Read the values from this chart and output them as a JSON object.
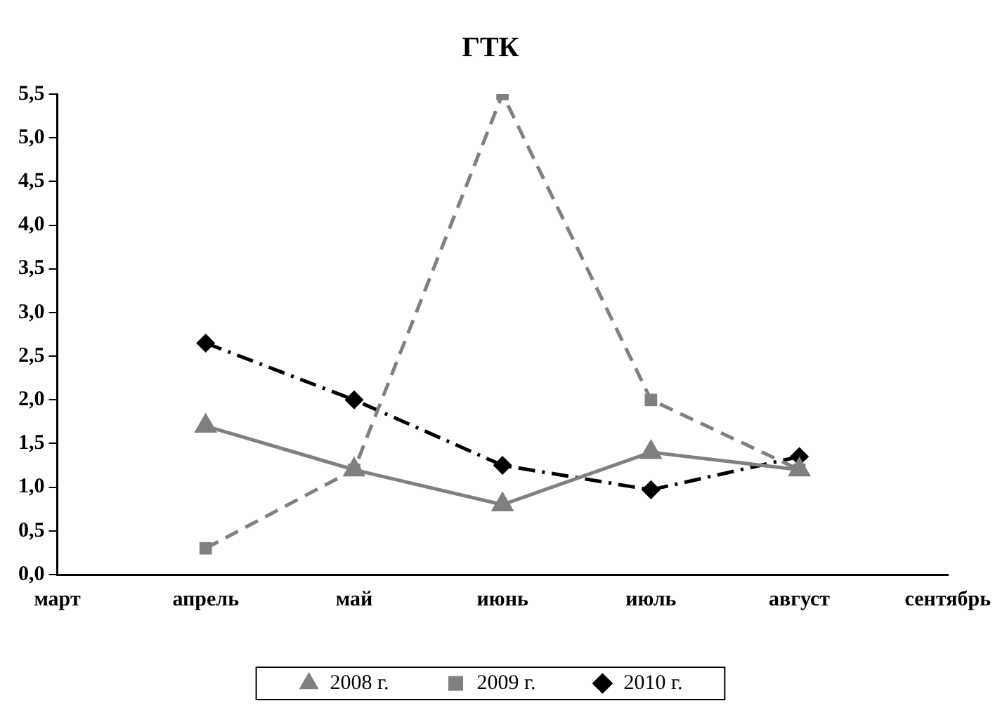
{
  "chart_data": {
    "type": "line",
    "title": "ГТК",
    "categories": [
      "март",
      "апрель",
      "май",
      "июнь",
      "июль",
      "август",
      "сентябрь"
    ],
    "series": [
      {
        "name": "2008 г.",
        "color": "#808080",
        "marker": "triangle",
        "line_style": "solid",
        "values": [
          null,
          1.7,
          1.2,
          0.8,
          1.4,
          1.2,
          null
        ]
      },
      {
        "name": "2009 г.",
        "color": "#808080",
        "marker": "square",
        "line_style": "dashed",
        "values": [
          null,
          0.3,
          1.2,
          5.5,
          2.0,
          1.2,
          null
        ]
      },
      {
        "name": "2010 г.",
        "color": "#000000",
        "marker": "diamond",
        "line_style": "dashdot",
        "values": [
          null,
          2.65,
          2.0,
          1.25,
          0.97,
          1.35,
          null
        ]
      }
    ],
    "ylim": [
      0,
      5.5
    ],
    "yticks": [
      {
        "value": 0,
        "label": "0,0"
      },
      {
        "value": 0.5,
        "label": "0,5"
      },
      {
        "value": 1,
        "label": "1,0"
      },
      {
        "value": 1.5,
        "label": "1,5"
      },
      {
        "value": 2,
        "label": "2,0"
      },
      {
        "value": 2.5,
        "label": "2,5"
      },
      {
        "value": 3,
        "label": "3,0"
      },
      {
        "value": 3.5,
        "label": "3,5"
      },
      {
        "value": 4,
        "label": "4,0"
      },
      {
        "value": 4.5,
        "label": "4,5"
      },
      {
        "value": 5,
        "label": "5,0"
      },
      {
        "value": 5.5,
        "label": "5,5"
      }
    ],
    "grid": false,
    "legend": "bottom"
  }
}
